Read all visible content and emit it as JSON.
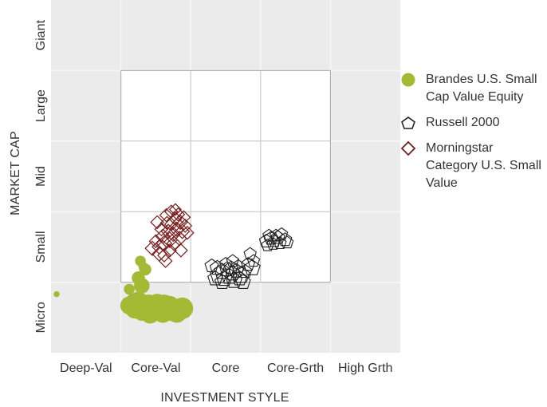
{
  "chart_data": {
    "type": "scatter",
    "xlabel": "INVESTMENT STYLE",
    "ylabel": "MARKET CAP",
    "x_categories": [
      "Deep-Val",
      "Core-Val",
      "Core",
      "Core-Grth",
      "High Grth"
    ],
    "y_categories": [
      "Micro",
      "Small",
      "Mid",
      "Large",
      "Giant"
    ],
    "xlim": [
      0,
      5
    ],
    "ylim": [
      0,
      5
    ],
    "highlight_box": {
      "x": [
        1,
        4
      ],
      "y": [
        1,
        4
      ]
    },
    "legend_position": "right",
    "series": [
      {
        "name": "Brandes U.S. Small Cap Value Equity",
        "marker": "circle",
        "color": "#a4b934",
        "points": [
          {
            "x": 0.08,
            "y": 0.83,
            "s": 0.5
          },
          {
            "x": 1.3,
            "y": 0.95,
            "s": 1.3
          },
          {
            "x": 1.25,
            "y": 1.06,
            "s": 1.1
          },
          {
            "x": 1.35,
            "y": 1.18,
            "s": 1.0
          },
          {
            "x": 1.28,
            "y": 1.3,
            "s": 0.9
          },
          {
            "x": 1.32,
            "y": 1.22,
            "s": 0.8
          },
          {
            "x": 1.12,
            "y": 0.9,
            "s": 0.9
          },
          {
            "x": 1.25,
            "y": 0.74,
            "s": 1.5
          },
          {
            "x": 1.3,
            "y": 0.7,
            "s": 1.6
          },
          {
            "x": 1.4,
            "y": 0.69,
            "s": 1.6
          },
          {
            "x": 1.52,
            "y": 0.7,
            "s": 1.6
          },
          {
            "x": 1.62,
            "y": 0.68,
            "s": 1.7
          },
          {
            "x": 1.7,
            "y": 0.66,
            "s": 1.7
          },
          {
            "x": 1.88,
            "y": 0.63,
            "s": 1.8
          },
          {
            "x": 1.2,
            "y": 0.62,
            "s": 1.6
          },
          {
            "x": 1.35,
            "y": 0.62,
            "s": 1.8
          },
          {
            "x": 1.47,
            "y": 0.6,
            "s": 1.7
          },
          {
            "x": 1.58,
            "y": 0.61,
            "s": 1.8
          },
          {
            "x": 1.74,
            "y": 0.6,
            "s": 1.8
          },
          {
            "x": 1.12,
            "y": 0.67,
            "s": 1.5
          },
          {
            "x": 1.42,
            "y": 0.55,
            "s": 1.6
          },
          {
            "x": 1.6,
            "y": 0.56,
            "s": 1.6
          },
          {
            "x": 1.8,
            "y": 0.57,
            "s": 1.7
          },
          {
            "x": 1.3,
            "y": 0.58,
            "s": 1.5
          },
          {
            "x": 1.55,
            "y": 0.65,
            "s": 1.5
          },
          {
            "x": 1.18,
            "y": 0.73,
            "s": 1.3
          }
        ]
      },
      {
        "name": "Russell 2000",
        "marker": "pentagon",
        "color": "#222222",
        "points": [
          {
            "x": 2.3,
            "y": 1.23,
            "s": 1.1
          },
          {
            "x": 2.38,
            "y": 1.2,
            "s": 1.2
          },
          {
            "x": 2.45,
            "y": 1.15,
            "s": 1.3
          },
          {
            "x": 2.52,
            "y": 1.18,
            "s": 1.2
          },
          {
            "x": 2.4,
            "y": 1.1,
            "s": 1.4
          },
          {
            "x": 2.48,
            "y": 1.05,
            "s": 1.3
          },
          {
            "x": 2.55,
            "y": 1.08,
            "s": 1.3
          },
          {
            "x": 2.6,
            "y": 1.12,
            "s": 1.2
          },
          {
            "x": 2.58,
            "y": 1.2,
            "s": 1.1
          },
          {
            "x": 2.65,
            "y": 1.16,
            "s": 1.2
          },
          {
            "x": 2.68,
            "y": 1.22,
            "s": 1.1
          },
          {
            "x": 2.72,
            "y": 1.1,
            "s": 1.4
          },
          {
            "x": 2.62,
            "y": 1.02,
            "s": 1.3
          },
          {
            "x": 2.7,
            "y": 1.05,
            "s": 1.2
          },
          {
            "x": 2.78,
            "y": 1.15,
            "s": 1.1
          },
          {
            "x": 2.82,
            "y": 1.25,
            "s": 1.1
          },
          {
            "x": 2.5,
            "y": 1.26,
            "s": 1.0
          },
          {
            "x": 2.35,
            "y": 1.05,
            "s": 1.2
          },
          {
            "x": 2.6,
            "y": 1.3,
            "s": 1.0
          },
          {
            "x": 2.88,
            "y": 1.2,
            "s": 1.3
          },
          {
            "x": 2.9,
            "y": 1.3,
            "s": 1.0
          },
          {
            "x": 2.45,
            "y": 1.0,
            "s": 1.2
          },
          {
            "x": 2.75,
            "y": 1.0,
            "s": 1.2
          },
          {
            "x": 2.85,
            "y": 1.4,
            "s": 1.0
          },
          {
            "x": 3.08,
            "y": 1.58,
            "s": 1.1
          },
          {
            "x": 3.15,
            "y": 1.62,
            "s": 1.1
          },
          {
            "x": 3.2,
            "y": 1.58,
            "s": 1.0
          },
          {
            "x": 3.25,
            "y": 1.63,
            "s": 1.1
          },
          {
            "x": 3.3,
            "y": 1.68,
            "s": 1.0
          },
          {
            "x": 3.18,
            "y": 1.54,
            "s": 1.0
          },
          {
            "x": 3.12,
            "y": 1.66,
            "s": 1.0
          },
          {
            "x": 3.35,
            "y": 1.6,
            "s": 1.1
          },
          {
            "x": 3.28,
            "y": 1.55,
            "s": 1.0
          },
          {
            "x": 3.1,
            "y": 1.52,
            "s": 1.0
          },
          {
            "x": 3.22,
            "y": 1.66,
            "s": 1.0
          },
          {
            "x": 3.38,
            "y": 1.56,
            "s": 1.0
          }
        ]
      },
      {
        "name": "Morningstar Category U.S. Small Value",
        "marker": "diamond",
        "color": "#7a1d1d",
        "points": [
          {
            "x": 1.55,
            "y": 1.5,
            "s": 1.1
          },
          {
            "x": 1.62,
            "y": 1.55,
            "s": 1.2
          },
          {
            "x": 1.7,
            "y": 1.6,
            "s": 1.2
          },
          {
            "x": 1.75,
            "y": 1.68,
            "s": 1.1
          },
          {
            "x": 1.68,
            "y": 1.72,
            "s": 1.1
          },
          {
            "x": 1.8,
            "y": 1.75,
            "s": 1.1
          },
          {
            "x": 1.72,
            "y": 1.82,
            "s": 1.0
          },
          {
            "x": 1.78,
            "y": 1.9,
            "s": 1.0
          },
          {
            "x": 1.85,
            "y": 1.85,
            "s": 1.1
          },
          {
            "x": 1.82,
            "y": 1.96,
            "s": 1.0
          },
          {
            "x": 1.65,
            "y": 1.95,
            "s": 1.0
          },
          {
            "x": 1.72,
            "y": 2.0,
            "s": 1.0
          },
          {
            "x": 1.9,
            "y": 1.92,
            "s": 1.0
          },
          {
            "x": 1.6,
            "y": 1.65,
            "s": 1.1
          },
          {
            "x": 1.58,
            "y": 1.75,
            "s": 1.0
          },
          {
            "x": 1.66,
            "y": 1.84,
            "s": 1.0
          },
          {
            "x": 1.88,
            "y": 1.72,
            "s": 1.1
          },
          {
            "x": 1.92,
            "y": 1.8,
            "s": 1.0
          },
          {
            "x": 1.5,
            "y": 1.58,
            "s": 1.0
          },
          {
            "x": 1.45,
            "y": 1.48,
            "s": 1.1
          },
          {
            "x": 1.55,
            "y": 1.4,
            "s": 1.1
          },
          {
            "x": 1.62,
            "y": 1.38,
            "s": 1.0
          },
          {
            "x": 1.76,
            "y": 1.55,
            "s": 1.1
          },
          {
            "x": 1.84,
            "y": 1.62,
            "s": 1.1
          },
          {
            "x": 1.7,
            "y": 1.45,
            "s": 1.0
          },
          {
            "x": 1.95,
            "y": 1.7,
            "s": 1.0
          },
          {
            "x": 1.78,
            "y": 2.03,
            "s": 0.9
          },
          {
            "x": 1.86,
            "y": 1.45,
            "s": 1.0
          },
          {
            "x": 1.64,
            "y": 1.3,
            "s": 1.0
          },
          {
            "x": 1.52,
            "y": 1.85,
            "s": 1.0
          }
        ]
      }
    ]
  }
}
